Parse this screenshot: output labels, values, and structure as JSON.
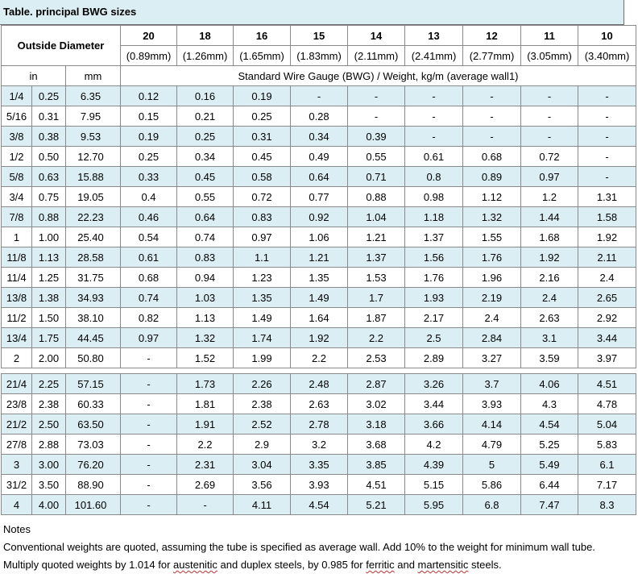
{
  "title": "Table. principal BWG sizes",
  "header": {
    "od_label": "Outside Diameter",
    "gauges": [
      "20",
      "18",
      "16",
      "15",
      "14",
      "13",
      "12",
      "11",
      "10"
    ],
    "walls": [
      "(0.89mm)",
      "(1.26mm)",
      "(1.65mm)",
      "(1.83mm)",
      "(2.11mm)",
      "(2.41mm)",
      "(2.77mm)",
      "(3.05mm)",
      "(3.40mm)"
    ],
    "unit_in": "in",
    "unit_mm": "mm",
    "subtitle": "Standard Wire Gauge (BWG) / Weight, kg/m (average wall1)"
  },
  "rows_a": [
    {
      "frac": "1/4",
      "in": "0.25",
      "mm": "6.35",
      "w": [
        "0.12",
        "0.16",
        "0.19",
        "-",
        "-",
        "-",
        "-",
        "-",
        "-"
      ]
    },
    {
      "frac": "5/16",
      "in": "0.31",
      "mm": "7.95",
      "w": [
        "0.15",
        "0.21",
        "0.25",
        "0.28",
        "-",
        "-",
        "-",
        "-",
        "-"
      ]
    },
    {
      "frac": "3/8",
      "in": "0.38",
      "mm": "9.53",
      "w": [
        "0.19",
        "0.25",
        "0.31",
        "0.34",
        "0.39",
        "-",
        "-",
        "-",
        "-"
      ]
    },
    {
      "frac": "1/2",
      "in": "0.50",
      "mm": "12.70",
      "w": [
        "0.25",
        "0.34",
        "0.45",
        "0.49",
        "0.55",
        "0.61",
        "0.68",
        "0.72",
        "-"
      ]
    },
    {
      "frac": "5/8",
      "in": "0.63",
      "mm": "15.88",
      "w": [
        "0.33",
        "0.45",
        "0.58",
        "0.64",
        "0.71",
        "0.8",
        "0.89",
        "0.97",
        "-"
      ]
    },
    {
      "frac": "3/4",
      "in": "0.75",
      "mm": "19.05",
      "w": [
        "0.4",
        "0.55",
        "0.72",
        "0.77",
        "0.88",
        "0.98",
        "1.12",
        "1.2",
        "1.31"
      ]
    },
    {
      "frac": "7/8",
      "in": "0.88",
      "mm": "22.23",
      "w": [
        "0.46",
        "0.64",
        "0.83",
        "0.92",
        "1.04",
        "1.18",
        "1.32",
        "1.44",
        "1.58"
      ]
    },
    {
      "frac": "1",
      "in": "1.00",
      "mm": "25.40",
      "w": [
        "0.54",
        "0.74",
        "0.97",
        "1.06",
        "1.21",
        "1.37",
        "1.55",
        "1.68",
        "1.92"
      ]
    },
    {
      "frac": "11/8",
      "in": "1.13",
      "mm": "28.58",
      "w": [
        "0.61",
        "0.83",
        "1.1",
        "1.21",
        "1.37",
        "1.56",
        "1.76",
        "1.92",
        "2.11"
      ]
    },
    {
      "frac": "11/4",
      "in": "1.25",
      "mm": "31.75",
      "w": [
        "0.68",
        "0.94",
        "1.23",
        "1.35",
        "1.53",
        "1.76",
        "1.96",
        "2.16",
        "2.4"
      ]
    },
    {
      "frac": "13/8",
      "in": "1.38",
      "mm": "34.93",
      "w": [
        "0.74",
        "1.03",
        "1.35",
        "1.49",
        "1.7",
        "1.93",
        "2.19",
        "2.4",
        "2.65"
      ]
    },
    {
      "frac": "11/2",
      "in": "1.50",
      "mm": "38.10",
      "w": [
        "0.82",
        "1.13",
        "1.49",
        "1.64",
        "1.87",
        "2.17",
        "2.4",
        "2.63",
        "2.92"
      ]
    },
    {
      "frac": "13/4",
      "in": "1.75",
      "mm": "44.45",
      "w": [
        "0.97",
        "1.32",
        "1.74",
        "1.92",
        "2.2",
        "2.5",
        "2.84",
        "3.1",
        "3.44"
      ]
    },
    {
      "frac": "2",
      "in": "2.00",
      "mm": "50.80",
      "w": [
        "-",
        "1.52",
        "1.99",
        "2.2",
        "2.53",
        "2.89",
        "3.27",
        "3.59",
        "3.97"
      ]
    }
  ],
  "rows_b": [
    {
      "frac": "21/4",
      "in": "2.25",
      "mm": "57.15",
      "w": [
        "-",
        "1.73",
        "2.26",
        "2.48",
        "2.87",
        "3.26",
        "3.7",
        "4.06",
        "4.51"
      ]
    },
    {
      "frac": "23/8",
      "in": "2.38",
      "mm": "60.33",
      "w": [
        "-",
        "1.81",
        "2.38",
        "2.63",
        "3.02",
        "3.44",
        "3.93",
        "4.3",
        "4.78"
      ]
    },
    {
      "frac": "21/2",
      "in": "2.50",
      "mm": "63.50",
      "w": [
        "-",
        "1.91",
        "2.52",
        "2.78",
        "3.18",
        "3.66",
        "4.14",
        "4.54",
        "5.04"
      ]
    },
    {
      "frac": "27/8",
      "in": "2.88",
      "mm": "73.03",
      "w": [
        "-",
        "2.2",
        "2.9",
        "3.2",
        "3.68",
        "4.2",
        "4.79",
        "5.25",
        "5.83"
      ]
    },
    {
      "frac": "3",
      "in": "3.00",
      "mm": "76.20",
      "w": [
        "-",
        "2.31",
        "3.04",
        "3.35",
        "3.85",
        "4.39",
        "5",
        "5.49",
        "6.1"
      ]
    },
    {
      "frac": "31/2",
      "in": "3.50",
      "mm": "88.90",
      "w": [
        "-",
        "2.69",
        "3.56",
        "3.93",
        "4.51",
        "5.15",
        "5.86",
        "6.44",
        "7.17"
      ]
    },
    {
      "frac": "4",
      "in": "4.00",
      "mm": "101.60",
      "w": [
        "-",
        "-",
        "4.11",
        "4.54",
        "5.21",
        "5.95",
        "6.8",
        "7.47",
        "8.3"
      ]
    }
  ],
  "notes": {
    "heading": "Notes",
    "line1": "Conventional weights are quoted, assuming the tube is specified as average wall. Add 10% to the weight for minimum wall tube.",
    "line2_a": "Multiply quoted weights by 1.014 for ",
    "line2_b": "austenitic",
    "line2_c": " and duplex steels, by 0.985 for ",
    "line2_d": "ferritic",
    "line2_e": " and ",
    "line2_f": "martensitic",
    "line2_g": " steels."
  },
  "colors": {
    "header_fill": "#dbeef3",
    "border": "#8a8a8a"
  }
}
